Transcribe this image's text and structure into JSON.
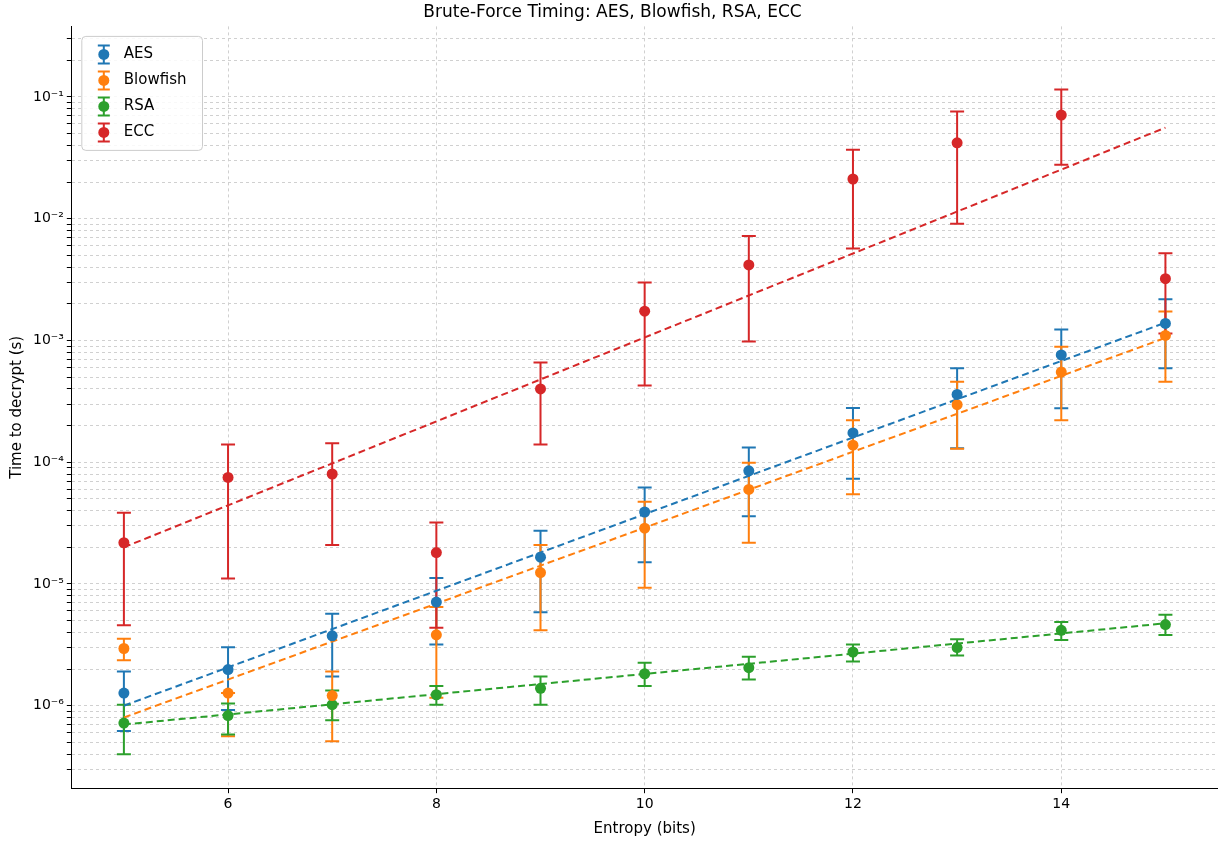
{
  "chart_data": {
    "type": "scatter",
    "title": "Brute-Force Timing: AES, Blowfish, RSA, ECC",
    "xlabel": "Entropy (bits)",
    "ylabel": "Time to decrypt (s)",
    "log": "y",
    "grid": true,
    "legend": "top left",
    "marker": "circle",
    "xlim": [
      4.5,
      15.5
    ],
    "xticks": [
      6,
      8,
      10,
      12,
      14
    ],
    "ylim": [
      2.1e-07,
      0.38
    ],
    "yticks": [
      {
        "value": 3e-07,
        "label": null
      },
      {
        "value": 4e-07,
        "label": null
      },
      {
        "value": 5e-07,
        "label": null
      },
      {
        "value": 6e-07,
        "label": null
      },
      {
        "value": 7e-07,
        "label": null
      },
      {
        "value": 8e-07,
        "label": null
      },
      {
        "value": 9e-07,
        "label": null
      },
      {
        "value": 1e-06,
        "label": "10⁻⁶"
      },
      {
        "value": 2e-06,
        "label": null
      },
      {
        "value": 3e-06,
        "label": null
      },
      {
        "value": 4e-06,
        "label": null
      },
      {
        "value": 5e-06,
        "label": null
      },
      {
        "value": 6e-06,
        "label": null
      },
      {
        "value": 7e-06,
        "label": null
      },
      {
        "value": 8e-06,
        "label": null
      },
      {
        "value": 9e-06,
        "label": null
      },
      {
        "value": 1e-05,
        "label": "10⁻⁵"
      },
      {
        "value": 2e-05,
        "label": null
      },
      {
        "value": 3e-05,
        "label": null
      },
      {
        "value": 4e-05,
        "label": null
      },
      {
        "value": 5e-05,
        "label": null
      },
      {
        "value": 6e-05,
        "label": null
      },
      {
        "value": 7e-05,
        "label": null
      },
      {
        "value": 8e-05,
        "label": null
      },
      {
        "value": 9e-05,
        "label": null
      },
      {
        "value": 0.0001,
        "label": "10⁻⁴"
      },
      {
        "value": 0.0002,
        "label": null
      },
      {
        "value": 0.0003,
        "label": null
      },
      {
        "value": 0.0004,
        "label": null
      },
      {
        "value": 0.0005,
        "label": null
      },
      {
        "value": 0.0006,
        "label": null
      },
      {
        "value": 0.0007,
        "label": null
      },
      {
        "value": 0.0008,
        "label": null
      },
      {
        "value": 0.0009,
        "label": null
      },
      {
        "value": 0.001,
        "label": "10⁻³"
      },
      {
        "value": 0.002,
        "label": null
      },
      {
        "value": 0.003,
        "label": null
      },
      {
        "value": 0.004,
        "label": null
      },
      {
        "value": 0.005,
        "label": null
      },
      {
        "value": 0.006,
        "label": null
      },
      {
        "value": 0.007,
        "label": null
      },
      {
        "value": 0.008,
        "label": null
      },
      {
        "value": 0.009,
        "label": null
      },
      {
        "value": 0.01,
        "label": "10⁻²"
      },
      {
        "value": 0.02,
        "label": null
      },
      {
        "value": 0.03,
        "label": null
      },
      {
        "value": 0.04,
        "label": null
      },
      {
        "value": 0.05,
        "label": null
      },
      {
        "value": 0.06,
        "label": null
      },
      {
        "value": 0.07,
        "label": null
      },
      {
        "value": 0.08,
        "label": null
      },
      {
        "value": 0.09,
        "label": null
      },
      {
        "value": 0.1,
        "label": "10⁻¹"
      },
      {
        "value": 0.2,
        "label": null
      },
      {
        "value": 0.3,
        "label": null
      }
    ],
    "series": [
      {
        "name": "AES",
        "color": "#1f77b4",
        "x": [
          5,
          6,
          7,
          8,
          9,
          10,
          11,
          12,
          13,
          14,
          15
        ],
        "values": [
          1.27e-06,
          1.98e-06,
          3.75e-06,
          7.1e-06,
          1.66e-05,
          3.9e-05,
          8.5e-05,
          0.000174,
          0.00036,
          0.00076,
          0.00138
        ],
        "errors": [
          [
            6.2e-07,
            1.91e-06
          ],
          [
            9.2e-07,
            3.02e-06
          ],
          [
            1.74e-06,
            5.7e-06
          ],
          [
            3.18e-06,
            1.12e-05
          ],
          [
            5.85e-06,
            2.73e-05
          ],
          [
            1.51e-05,
            6.2e-05
          ],
          [
            3.6e-05,
            0.000132
          ],
          [
            7.3e-05,
            0.000279
          ],
          [
            0.00013,
            0.00059
          ],
          [
            0.000277,
            0.00123
          ],
          [
            0.00059,
            0.00218
          ]
        ]
      },
      {
        "name": "Blowfish",
        "color": "#ff7f0e",
        "x": [
          5,
          6,
          7,
          8,
          9,
          10,
          11,
          12,
          13,
          14,
          15
        ],
        "values": [
          2.95e-06,
          1.27e-06,
          1.21e-06,
          3.82e-06,
          1.24e-05,
          2.87e-05,
          5.98e-05,
          0.000138,
          0.000297,
          0.00055,
          0.0011
        ],
        "errors": [
          [
            2.36e-06,
            3.55e-06
          ],
          [
            5.6e-07,
            1.27e-06
          ],
          [
            5.1e-07,
            1.91e-06
          ],
          [
            1.16e-06,
            6.48e-06
          ],
          [
            4.16e-06,
            2.09e-05
          ],
          [
            9.3e-06,
            4.74e-05
          ],
          [
            2.18e-05,
            9.9e-05
          ],
          [
            5.46e-05,
            0.000221
          ],
          [
            0.000129,
            0.000457
          ],
          [
            0.000221,
            0.00089
          ],
          [
            0.000457,
            0.00173
          ]
        ]
      },
      {
        "name": "RSA",
        "color": "#2ca02c",
        "x": [
          5,
          6,
          7,
          8,
          9,
          10,
          11,
          12,
          13,
          14,
          15
        ],
        "values": [
          7.2e-07,
          8.3e-07,
          1.02e-06,
          1.23e-06,
          1.39e-06,
          1.83e-06,
          2.05e-06,
          2.76e-06,
          3e-06,
          4.16e-06,
          4.64e-06
        ],
        "errors": [
          [
            4e-07,
            1.02e-06
          ],
          [
            5.8e-07,
            1.04e-06
          ],
          [
            7.6e-07,
            1.33e-06
          ],
          [
            1.02e-06,
            1.45e-06
          ],
          [
            1.02e-06,
            1.74e-06
          ],
          [
            1.45e-06,
            2.25e-06
          ],
          [
            1.64e-06,
            2.52e-06
          ],
          [
            2.31e-06,
            3.18e-06
          ],
          [
            2.58e-06,
            3.51e-06
          ],
          [
            3.46e-06,
            4.87e-06
          ],
          [
            3.81e-06,
            5.58e-06
          ]
        ]
      },
      {
        "name": "ECC",
        "color": "#d62728",
        "x": [
          5,
          6,
          7,
          8,
          9,
          10,
          11,
          12,
          13,
          14,
          15
        ],
        "values": [
          2.18e-05,
          7.5e-05,
          8e-05,
          1.81e-05,
          0.0004,
          0.00174,
          0.00417,
          0.0212,
          0.042,
          0.071,
          0.00322
        ],
        "errors": [
          [
            4.58e-06,
            3.85e-05
          ],
          [
            1.11e-05,
            0.00014
          ],
          [
            2.09e-05,
            0.000143
          ],
          [
            4.36e-06,
            3.2e-05
          ],
          [
            0.00014,
            0.00066
          ],
          [
            0.000426,
            0.003
          ],
          [
            0.00098,
            0.0072
          ],
          [
            0.0057,
            0.0368
          ],
          [
            0.0091,
            0.076
          ],
          [
            0.0277,
            0.115
          ],
          [
            0.00114,
            0.0052
          ]
        ]
      },
      {
        "type": "line",
        "color": "#1f77b4",
        "marker": "none",
        "line_style": "dashed",
        "x": [
          5,
          15
        ],
        "values": [
          1e-06,
          0.0014
        ]
      },
      {
        "type": "line",
        "color": "#ff7f0e",
        "marker": "none",
        "line_style": "dashed",
        "x": [
          5,
          15
        ],
        "values": [
          8e-07,
          0.00105
        ]
      },
      {
        "type": "line",
        "color": "#2ca02c",
        "marker": "none",
        "line_style": "dashed",
        "x": [
          5,
          15
        ],
        "values": [
          7e-07,
          4.75e-06
        ]
      },
      {
        "type": "line",
        "color": "#d62728",
        "marker": "none",
        "line_style": "dashed",
        "x": [
          5,
          15
        ],
        "values": [
          2e-05,
          0.056
        ]
      }
    ]
  }
}
